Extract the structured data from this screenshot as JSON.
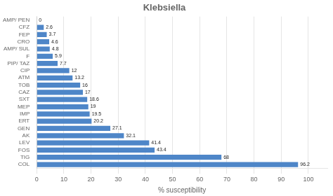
{
  "chart_data": {
    "type": "bar",
    "orientation": "horizontal",
    "title": "Klebsiella",
    "xlabel": "% susceptibility",
    "categories": [
      "AMP/ PEN",
      "CFZ",
      "FEP",
      "CRO",
      "AMP/ SUL",
      "F",
      "PIP/ TAZ",
      "CIP",
      "ATM",
      "TOB",
      "CAZ",
      "SXT",
      "MEP",
      "IMP",
      "ERT",
      "GEN",
      "AK",
      "LEV",
      "FOS",
      "TIG",
      "COL"
    ],
    "values": [
      0,
      2.6,
      3.7,
      4.6,
      4.8,
      5.9,
      7.7,
      12,
      13.2,
      16,
      17,
      18.6,
      19,
      19.5,
      20.2,
      27.1,
      32.1,
      41.4,
      43.4,
      68,
      96.2
    ],
    "color": "#4e86c8",
    "xlim": [
      0,
      107
    ],
    "xticks": [
      0,
      10,
      20,
      30,
      40,
      50,
      60,
      70,
      80,
      90,
      100
    ],
    "grid": true,
    "data_labels": true
  }
}
